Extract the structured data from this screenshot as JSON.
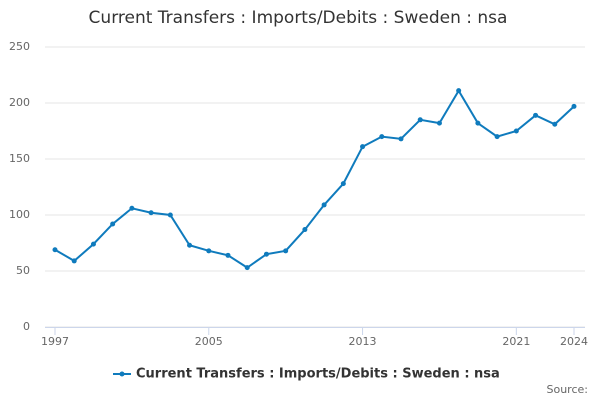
{
  "chart_data": {
    "type": "line",
    "title": "Current Transfers : Imports/Debits : Sweden : nsa",
    "x": [
      1997,
      1998,
      1999,
      2000,
      2001,
      2002,
      2003,
      2004,
      2005,
      2006,
      2007,
      2008,
      2009,
      2010,
      2011,
      2012,
      2013,
      2014,
      2015,
      2016,
      2017,
      2018,
      2019,
      2020,
      2021,
      2022,
      2023,
      2024
    ],
    "series": [
      {
        "name": "Current Transfers : Imports/Debits : Sweden : nsa",
        "color": "#0f7bbd",
        "values": [
          69,
          59,
          74,
          92,
          106,
          102,
          100,
          73,
          68,
          64,
          53,
          65,
          68,
          87,
          109,
          128,
          161,
          170,
          168,
          185,
          182,
          211,
          182,
          170,
          175,
          189,
          181,
          197
        ]
      }
    ],
    "xlim": [
      1997,
      2024
    ],
    "xticks": [
      1997,
      2005,
      2013,
      2021,
      2024
    ],
    "ylim": [
      0,
      250
    ],
    "yticks": [
      0,
      50,
      100,
      150,
      200,
      250
    ],
    "grid": true,
    "legend": "bottom",
    "source": "Source:"
  }
}
